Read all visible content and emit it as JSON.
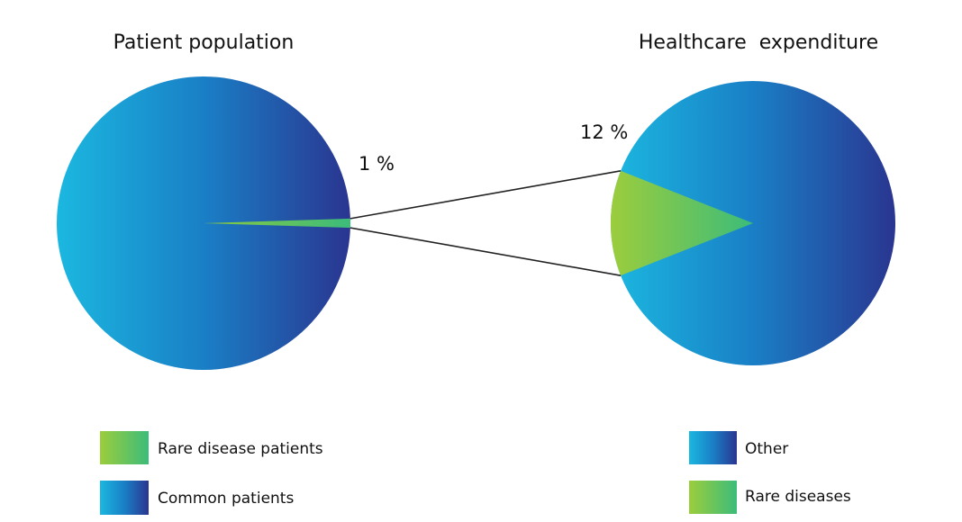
{
  "chart_data": [
    {
      "type": "pie",
      "title": "Patient population",
      "slices": [
        {
          "label": "Rare disease patients",
          "value": 1,
          "color": "#4cbf73"
        },
        {
          "label": "Common patients",
          "value": 99,
          "color": "#1e7fc8"
        }
      ],
      "data_labels": [
        "1 %"
      ],
      "legend": [
        {
          "label": "Rare disease patients",
          "swatch": "green-gradient"
        },
        {
          "label": "Common patients",
          "swatch": "blue-gradient"
        }
      ],
      "legend_position": "bottom"
    },
    {
      "type": "pie",
      "title": "Healthcare  expenditure",
      "slices": [
        {
          "label": "Rare diseases",
          "value": 12,
          "color": "#6cc24a"
        },
        {
          "label": "Other",
          "value": 88,
          "color": "#1e7fc8"
        }
      ],
      "data_labels": [
        "12 %"
      ],
      "legend": [
        {
          "label": "Other",
          "swatch": "blue-gradient"
        },
        {
          "label": "Rare diseases",
          "swatch": "green-gradient"
        }
      ],
      "legend_position": "bottom"
    }
  ],
  "colors": {
    "blue_light": "#1bb8e0",
    "blue_mid": "#1a7fc6",
    "blue_dark": "#2a3590",
    "green_light": "#9ccd3c",
    "green_dark": "#3cbc7a",
    "connector": "#222222"
  }
}
